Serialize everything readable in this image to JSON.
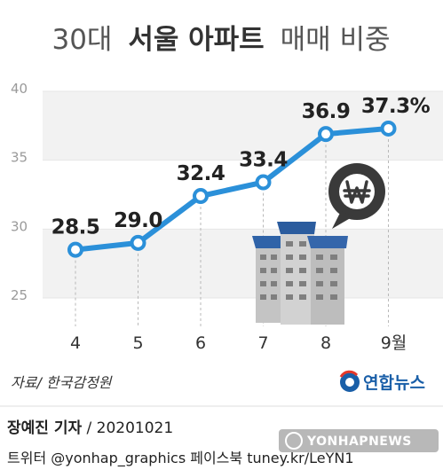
{
  "title": {
    "part1": "30대",
    "part2": "서울 아파트",
    "part3": "매매 비중"
  },
  "chart_data": {
    "type": "line",
    "categories": [
      "4",
      "5",
      "6",
      "7",
      "8",
      "9월"
    ],
    "values": [
      28.5,
      29.0,
      32.4,
      33.4,
      36.9,
      37.3
    ],
    "value_labels": [
      "28.5",
      "29.0",
      "32.4",
      "33.4",
      "36.9",
      "37.3%"
    ],
    "ylim": [
      25,
      40
    ],
    "yticks": [
      "25",
      "30",
      "35",
      "40"
    ],
    "ytick_values": [
      25,
      30,
      35,
      40
    ],
    "grid": "horizontal banded",
    "line_color": "#2b90d9",
    "marker_fill": "#ffffff"
  },
  "source": "자료/ 한국감정원",
  "logo": {
    "text": "연합뉴스",
    "color": "#1a5fa8"
  },
  "credit": {
    "reporter": "장예진 기자",
    "date": " / 20201021"
  },
  "social": "트위터 @yonhap_graphics  페이스북 tuney.kr/LeYN1",
  "watermark": "YONHAPNEWS",
  "colors": {
    "band": "#f2f2f2",
    "building_roof": "#2f63a8",
    "building_body": "#c9c9c9",
    "won_bubble": "#3a3a3a"
  },
  "icons": [
    "won-currency-icon",
    "apartment-building-icon",
    "yonhap-logo-icon"
  ]
}
